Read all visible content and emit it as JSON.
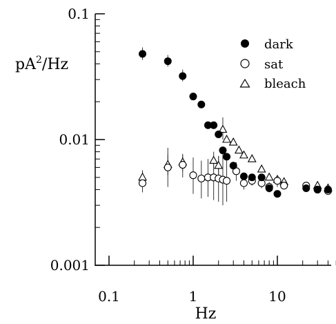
{
  "chart_data": {
    "type": "scatter",
    "xscale": "log",
    "yscale": "log",
    "xlim": [
      0.1,
      50
    ],
    "ylim": [
      0.001,
      0.1
    ],
    "xlabel": "Hz",
    "ylabel_main": "pA",
    "ylabel_sup": "2",
    "ylabel_tail": "/Hz",
    "xticks": [
      {
        "value": 0.1,
        "label": "0.1"
      },
      {
        "value": 1,
        "label": "1"
      },
      {
        "value": 10,
        "label": "10"
      }
    ],
    "yticks": [
      {
        "value": 0.1,
        "label": "0.1"
      },
      {
        "value": 0.01,
        "label": "0.01"
      },
      {
        "value": 0.001,
        "label": "0.001"
      }
    ],
    "legend_position": "top-right",
    "series": [
      {
        "name": "dark",
        "marker": "filled-circle",
        "points": [
          {
            "x": 0.25,
            "y": 0.048,
            "lo": 0.043,
            "hi": 0.054
          },
          {
            "x": 0.5,
            "y": 0.042,
            "lo": 0.038,
            "hi": 0.047
          },
          {
            "x": 0.75,
            "y": 0.032,
            "lo": 0.029,
            "hi": 0.036
          },
          {
            "x": 1.0,
            "y": 0.022
          },
          {
            "x": 1.25,
            "y": 0.019
          },
          {
            "x": 1.5,
            "y": 0.013
          },
          {
            "x": 1.75,
            "y": 0.013
          },
          {
            "x": 2.0,
            "y": 0.011
          },
          {
            "x": 2.25,
            "y": 0.0082
          },
          {
            "x": 2.5,
            "y": 0.0073
          },
          {
            "x": 3.0,
            "y": 0.0062
          },
          {
            "x": 4.0,
            "y": 0.0051
          },
          {
            "x": 5.0,
            "y": 0.005
          },
          {
            "x": 6.5,
            "y": 0.005
          },
          {
            "x": 8.0,
            "y": 0.0041
          },
          {
            "x": 10.0,
            "y": 0.0037
          },
          {
            "x": 22.0,
            "y": 0.0041
          },
          {
            "x": 30.0,
            "y": 0.004
          },
          {
            "x": 40.0,
            "y": 0.004
          }
        ]
      },
      {
        "name": "sat",
        "marker": "open-circle",
        "points": [
          {
            "x": 0.25,
            "y": 0.0045,
            "lo": 0.0038,
            "hi": 0.0056
          },
          {
            "x": 0.5,
            "y": 0.006,
            "lo": 0.0042,
            "hi": 0.0086
          },
          {
            "x": 0.75,
            "y": 0.0063,
            "lo": 0.005,
            "hi": 0.0075
          },
          {
            "x": 1.0,
            "y": 0.0052,
            "lo": 0.0037,
            "hi": 0.0072
          },
          {
            "x": 1.25,
            "y": 0.0049,
            "lo": 0.0034,
            "hi": 0.0068
          },
          {
            "x": 1.5,
            "y": 0.005,
            "lo": 0.0035,
            "hi": 0.007
          },
          {
            "x": 1.75,
            "y": 0.005,
            "lo": 0.0033,
            "hi": 0.0072
          },
          {
            "x": 2.0,
            "y": 0.0049,
            "lo": 0.0032,
            "hi": 0.0074
          },
          {
            "x": 2.25,
            "y": 0.0048,
            "lo": 0.003,
            "hi": 0.0078
          },
          {
            "x": 2.5,
            "y": 0.0047,
            "lo": 0.0032,
            "hi": 0.0068
          },
          {
            "x": 3.25,
            "y": 0.0056,
            "lo": 0.0047,
            "hi": 0.0066
          },
          {
            "x": 4.0,
            "y": 0.0045,
            "lo": 0.004,
            "hi": 0.0051
          },
          {
            "x": 5.0,
            "y": 0.0047,
            "lo": 0.0043,
            "hi": 0.0052
          },
          {
            "x": 6.5,
            "y": 0.0045,
            "lo": 0.0041,
            "hi": 0.005
          },
          {
            "x": 8.0,
            "y": 0.0042,
            "lo": 0.0038,
            "hi": 0.0046
          },
          {
            "x": 10.0,
            "y": 0.0047,
            "lo": 0.0042,
            "hi": 0.0052
          },
          {
            "x": 12.0,
            "y": 0.0043
          },
          {
            "x": 22.0,
            "y": 0.0043
          },
          {
            "x": 30.0,
            "y": 0.004
          },
          {
            "x": 40.0,
            "y": 0.0039
          }
        ]
      },
      {
        "name": "bleach",
        "marker": "open-triangle",
        "points": [
          {
            "x": 0.25,
            "y": 0.005,
            "lo": 0.0044,
            "hi": 0.0057
          },
          {
            "x": 0.5,
            "y": 0.0063,
            "lo": 0.0052,
            "hi": 0.0076
          },
          {
            "x": 0.75,
            "y": 0.0066,
            "lo": 0.0056,
            "hi": 0.0077
          },
          {
            "x": 1.75,
            "y": 0.0068,
            "lo": 0.0058,
            "hi": 0.008
          },
          {
            "x": 2.0,
            "y": 0.0062,
            "lo": 0.0052,
            "hi": 0.0074
          },
          {
            "x": 2.25,
            "y": 0.012,
            "lo": 0.01,
            "hi": 0.015
          },
          {
            "x": 2.5,
            "y": 0.01
          },
          {
            "x": 3.0,
            "y": 0.0095
          },
          {
            "x": 3.5,
            "y": 0.0082
          },
          {
            "x": 4.0,
            "y": 0.0075
          },
          {
            "x": 5.0,
            "y": 0.007
          },
          {
            "x": 6.5,
            "y": 0.0058
          },
          {
            "x": 8.0,
            "y": 0.005
          },
          {
            "x": 10.0,
            "y": 0.0048
          },
          {
            "x": 12.0,
            "y": 0.0046
          },
          {
            "x": 30.0,
            "y": 0.0043
          },
          {
            "x": 40.0,
            "y": 0.0041
          }
        ]
      }
    ]
  }
}
